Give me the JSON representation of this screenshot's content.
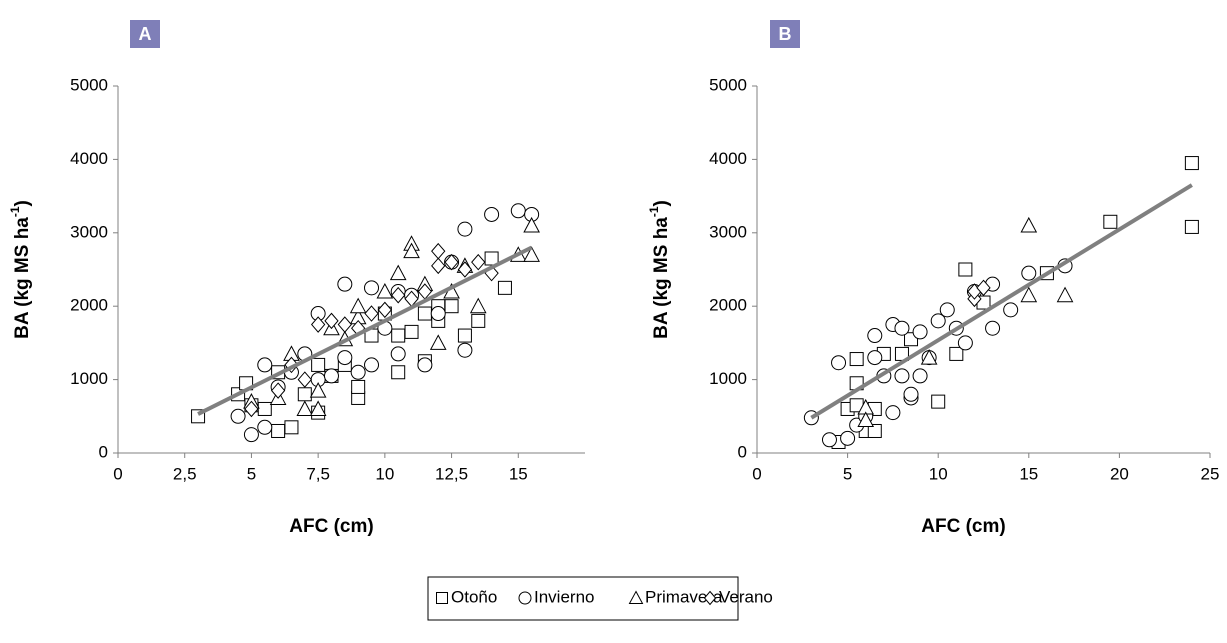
{
  "chart_data": [
    {
      "type": "scatter",
      "panel": "A",
      "xlabel": "AFC (cm)",
      "ylabel": {
        "text": "BA (kg MS ha",
        "sup": "-1",
        "end": ")"
      },
      "xlim": [
        0,
        17.5
      ],
      "ylim": [
        0,
        5000
      ],
      "xticks": [
        0,
        {
          "value": 2.5,
          "label": "2,5"
        },
        5,
        {
          "value": 7.5,
          "label": "7,5"
        },
        10,
        {
          "value": 12.5,
          "label": "12,5"
        },
        15
      ],
      "yticks": [
        0,
        1000,
        2000,
        3000,
        4000,
        5000
      ],
      "series": [
        {
          "name": "Otoño",
          "marker": "square",
          "color": "#000000",
          "x": [
            3,
            4.5,
            4.8,
            5,
            5.5,
            6,
            6,
            6.5,
            7,
            7.5,
            7.5,
            8,
            8.5,
            9,
            9,
            9.5,
            10,
            10.5,
            10.5,
            11,
            11.5,
            11.5,
            12,
            12,
            12.5,
            13,
            13.5,
            14,
            14.5
          ],
          "values": [
            500,
            800,
            950,
            650,
            600,
            300,
            1100,
            350,
            800,
            550,
            1200,
            1050,
            1200,
            750,
            900,
            1600,
            1900,
            1100,
            1600,
            1650,
            1250,
            1900,
            1800,
            2000,
            2000,
            1600,
            1800,
            2650,
            2250
          ]
        },
        {
          "name": "Invierno",
          "marker": "circle",
          "color": "#000000",
          "x": [
            4.5,
            5,
            5.5,
            5.5,
            6,
            6.5,
            7,
            7.5,
            7.5,
            8,
            8.5,
            8.5,
            9,
            9.5,
            9.5,
            10,
            10.5,
            10.5,
            11,
            11.5,
            12,
            12.5,
            13,
            13,
            14,
            15,
            15.5
          ],
          "values": [
            500,
            250,
            350,
            1200,
            900,
            1100,
            1350,
            1900,
            1000,
            1050,
            2300,
            1300,
            1100,
            1200,
            2250,
            1700,
            1350,
            2200,
            2150,
            1200,
            1900,
            2600,
            1400,
            3050,
            3250,
            3300,
            3250
          ]
        },
        {
          "name": "Primavera",
          "marker": "triangle",
          "color": "#000000",
          "x": [
            5,
            6,
            6.5,
            7,
            7.5,
            7.5,
            8,
            8.5,
            9,
            9,
            10,
            10.5,
            11,
            11,
            11.5,
            12,
            12.5,
            13,
            13.5,
            15,
            15.5,
            15.5
          ],
          "values": [
            700,
            750,
            1350,
            600,
            600,
            850,
            1700,
            1550,
            1850,
            2000,
            2200,
            2450,
            2850,
            2750,
            2300,
            1500,
            2200,
            2550,
            2000,
            2700,
            3100,
            2700
          ]
        },
        {
          "name": "Verano",
          "marker": "diamond",
          "color": "#000000",
          "x": [
            5,
            6,
            6.5,
            7,
            7.5,
            8,
            8.5,
            9,
            9.5,
            10,
            10.5,
            11,
            11.5,
            12,
            12,
            12.5,
            13,
            13.5,
            14
          ],
          "values": [
            600,
            850,
            1200,
            1000,
            1750,
            1800,
            1750,
            1700,
            1900,
            1950,
            2150,
            2100,
            2200,
            2550,
            2750,
            2600,
            2500,
            2600,
            2450
          ]
        }
      ],
      "trendline": {
        "color": "#808080",
        "x": [
          3,
          15.5
        ],
        "values": [
          530,
          2800
        ]
      }
    },
    {
      "type": "scatter",
      "panel": "B",
      "xlabel": "AFC (cm)",
      "ylabel": {
        "text": "BA (kg MS ha",
        "sup": "-1",
        "end": ")"
      },
      "xlim": [
        0,
        25
      ],
      "ylim": [
        0,
        5000
      ],
      "xticks": [
        0,
        5,
        10,
        15,
        20,
        25
      ],
      "yticks": [
        0,
        1000,
        2000,
        3000,
        4000,
        5000
      ],
      "series": [
        {
          "name": "Otoño",
          "marker": "square",
          "color": "#000000",
          "x": [
            4.5,
            5,
            5.5,
            5.5,
            5.5,
            6,
            6.5,
            6.5,
            7,
            8,
            8.5,
            10,
            11,
            11.5,
            12.5,
            16,
            19.5,
            24,
            24
          ],
          "values": [
            150,
            600,
            950,
            1280,
            650,
            300,
            600,
            300,
            1350,
            1350,
            1550,
            700,
            1350,
            2500,
            2050,
            2450,
            3150,
            3950,
            3080
          ]
        },
        {
          "name": "Invierno",
          "marker": "circle",
          "color": "#000000",
          "x": [
            3,
            4,
            4.5,
            5,
            5.5,
            6,
            6.5,
            6.5,
            7,
            7.5,
            7.5,
            8,
            8,
            8.5,
            8.5,
            9,
            9,
            9.5,
            10,
            10.5,
            11,
            11.5,
            12,
            13,
            13,
            14,
            15,
            17
          ],
          "values": [
            480,
            180,
            1230,
            200,
            380,
            500,
            1600,
            1300,
            1050,
            550,
            1750,
            1700,
            1050,
            750,
            800,
            1050,
            1650,
            1300,
            1800,
            1950,
            1700,
            1500,
            2200,
            2300,
            1700,
            1950,
            2450,
            2550
          ]
        },
        {
          "name": "Primavera",
          "marker": "triangle",
          "color": "#000000",
          "x": [
            6,
            6,
            9.5,
            15,
            15,
            17
          ],
          "values": [
            620,
            450,
            1300,
            3100,
            2150,
            2150
          ]
        },
        {
          "name": "Verano",
          "marker": "diamond",
          "color": "#000000",
          "x": [
            12,
            12,
            12.5
          ],
          "values": [
            2100,
            2200,
            2250
          ]
        }
      ],
      "trendline": {
        "color": "#808080",
        "x": [
          3,
          24
        ],
        "values": [
          480,
          3650
        ]
      }
    }
  ]
}
